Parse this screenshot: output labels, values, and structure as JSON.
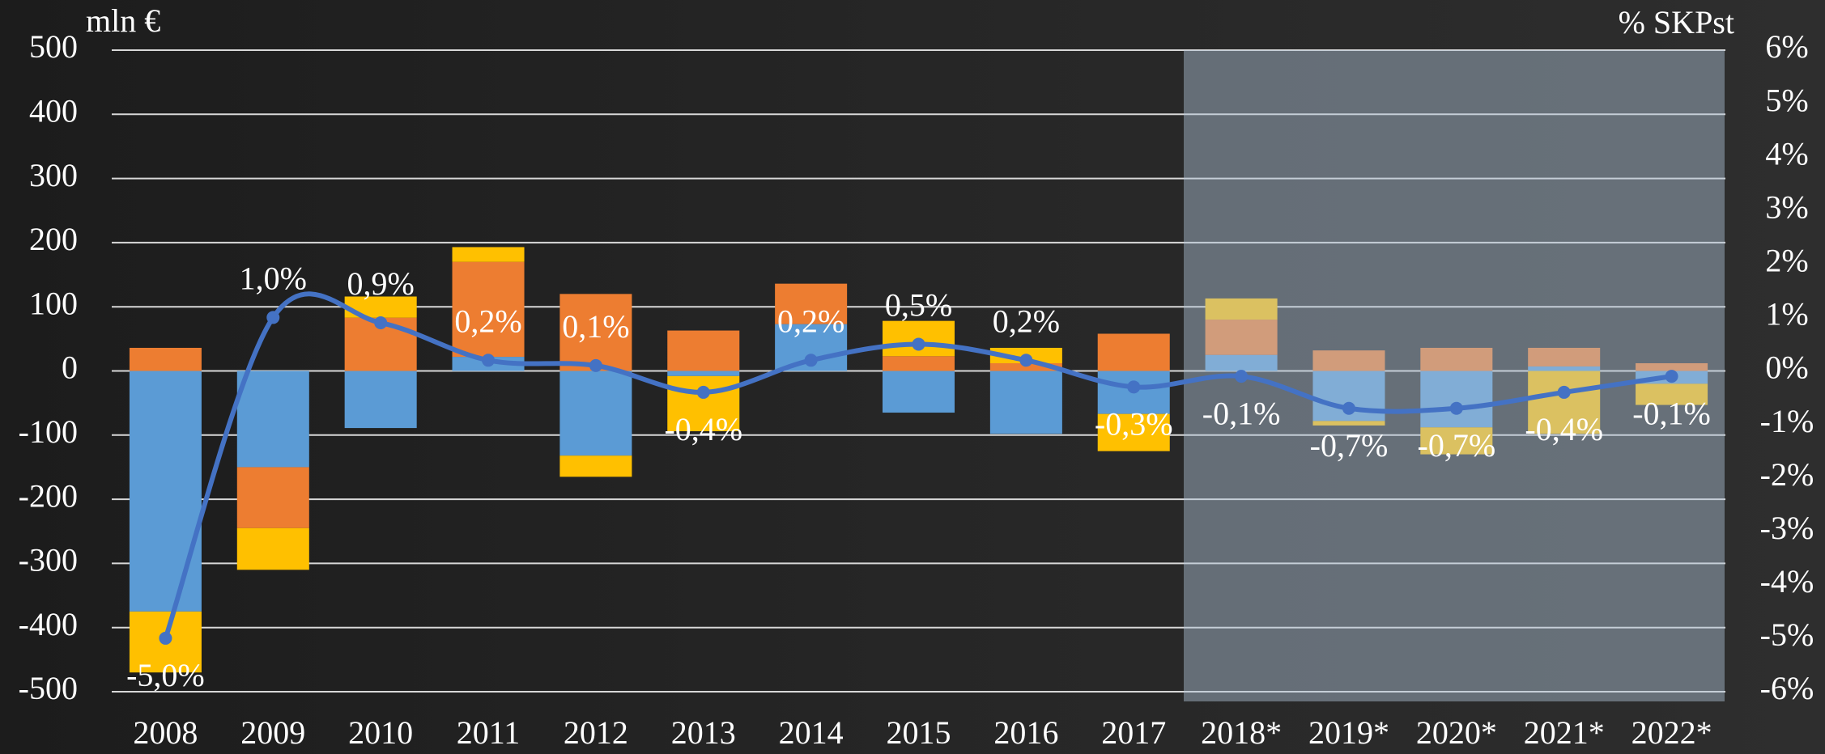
{
  "chart_data": {
    "type": "bar",
    "y_axis_label": "mln €",
    "y2_axis_label": "% SKPst",
    "categories": [
      "2008",
      "2009",
      "2010",
      "2011",
      "2012",
      "2013",
      "2014",
      "2015",
      "2016",
      "2017",
      "2018*",
      "2019*",
      "2020*",
      "2021*",
      "2022*"
    ],
    "series": [
      {
        "color": "#5b9bd5",
        "values": [
          -375,
          -150,
          -89,
          22,
          -132,
          -8,
          73,
          -65,
          -98,
          -67,
          25,
          -78,
          -88,
          7,
          -20
        ]
      },
      {
        "color": "#ed7d31",
        "values": [
          36,
          -95,
          83,
          148,
          120,
          63,
          63,
          23,
          12,
          58,
          55,
          32,
          36,
          29,
          12
        ]
      },
      {
        "color": "#ffc000",
        "values": [
          -95,
          -65,
          33,
          23,
          -33,
          -86,
          0,
          55,
          24,
          -58,
          33,
          -7,
          -42,
          -98,
          -33
        ]
      },
      {
        "type": "line",
        "axis": "y2",
        "color": "#4472c4",
        "values": [
          -5.0,
          1.0,
          0.9,
          0.2,
          0.1,
          -0.4,
          0.2,
          0.5,
          0.2,
          -0.3,
          -0.1,
          -0.7,
          -0.7,
          -0.4,
          -0.1
        ],
        "value_labels": [
          "-5,0%",
          "1,0%",
          "0,9%",
          "0,2%",
          "0,1%",
          "-0,4%",
          "0,2%",
          "0,5%",
          "0,2%",
          "-0,3%",
          "-0,1%",
          "-0,7%",
          "-0,7%",
          "-0,4%",
          "-0,1%"
        ]
      }
    ],
    "ylim": [
      -500,
      500
    ],
    "yticks": [
      -500,
      -400,
      -300,
      -200,
      -100,
      0,
      100,
      200,
      300,
      400,
      500
    ],
    "y2lim": [
      -6,
      6
    ],
    "y2ticks": [
      {
        "value": -6,
        "label": "-6%"
      },
      {
        "value": -5,
        "label": "-5%"
      },
      {
        "value": -4,
        "label": "-4%"
      },
      {
        "value": -3,
        "label": "-3%"
      },
      {
        "value": -2,
        "label": "-2%"
      },
      {
        "value": -1,
        "label": "-1%"
      },
      {
        "value": 0,
        "label": "0%"
      },
      {
        "value": 1,
        "label": "1%"
      },
      {
        "value": 2,
        "label": "2%"
      },
      {
        "value": 3,
        "label": "3%"
      },
      {
        "value": 4,
        "label": "4%"
      },
      {
        "value": 5,
        "label": "5%"
      },
      {
        "value": 6,
        "label": "6%"
      }
    ],
    "grid": true
  }
}
